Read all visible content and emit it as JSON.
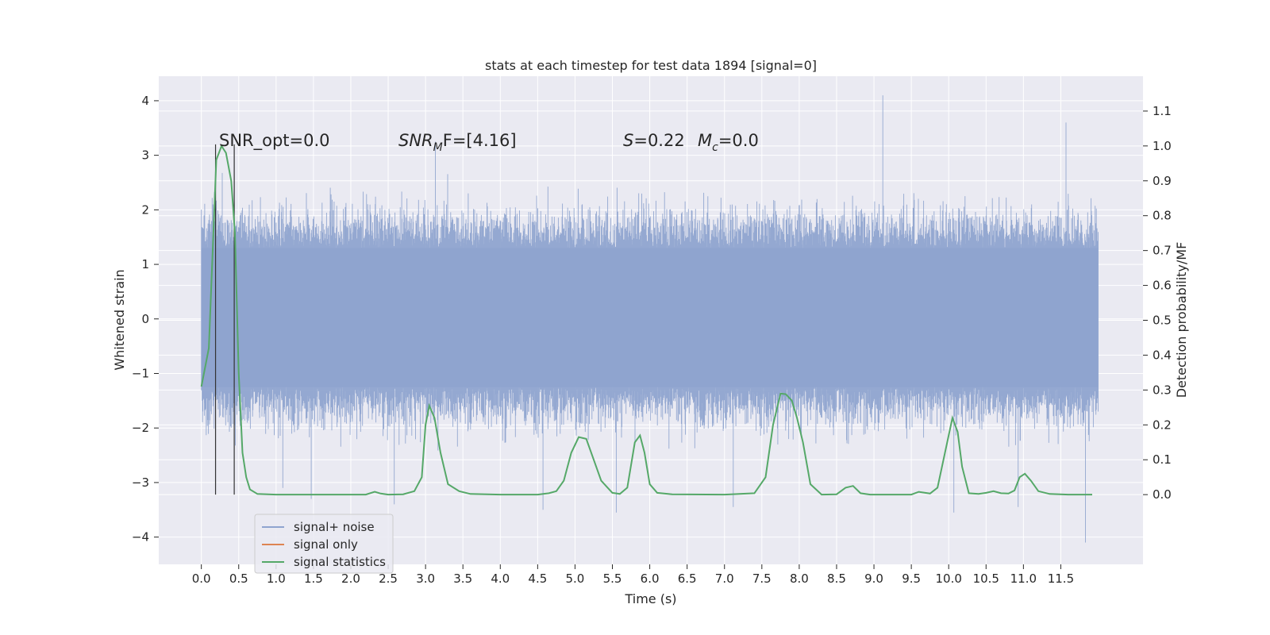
{
  "chart_data": {
    "type": "line",
    "title": "stats at each timestep for test data 1894 [signal=0]",
    "xlabel": "Time (s)",
    "ylabel_left": "Whitened strain",
    "ylabel_right": "Detection probability/MF",
    "xlim": [
      -0.57,
      12.6
    ],
    "ylim_left": [
      -4.5,
      4.45
    ],
    "ylim_right": [
      -0.2,
      1.2
    ],
    "x_ticks": [
      "0.0",
      "0.5",
      "1.0",
      "1.5",
      "2.0",
      "2.5",
      "3.0",
      "3.5",
      "4.0",
      "4.5",
      "5.0",
      "5.5",
      "6.0",
      "6.5",
      "7.0",
      "7.5",
      "8.0",
      "8.5",
      "9.0",
      "9.5",
      "10.0",
      "10.5",
      "11.0",
      "11.5"
    ],
    "y_left_ticks": [
      "4",
      "3",
      "2",
      "1",
      "0",
      "−1",
      "−2",
      "−3",
      "−4"
    ],
    "y_right_ticks": [
      "1.1",
      "1.0",
      "0.9",
      "0.8",
      "0.7",
      "0.6",
      "0.5",
      "0.4",
      "0.3",
      "0.2",
      "0.1",
      "0.0"
    ],
    "grid": true,
    "legend_position": "lower-left",
    "annotations": {
      "snr_opt": "SNR_opt=0.0",
      "snr_mf_prefix": "SNR",
      "snr_mf_sub": "M",
      "snr_mf_suffix": "F=[4.16]",
      "s_label": "S",
      "s_value": "=0.22",
      "mc_label": "M",
      "mc_sub": "c",
      "mc_value": "=0.0"
    },
    "vertical_markers_x": [
      0.19,
      0.44
    ],
    "series": [
      {
        "name": "signal+ noise",
        "color": "#8fa4cf",
        "kind": "noise",
        "x_range": [
          0.0,
          12.0
        ],
        "band": [
          -1.25,
          1.3
        ],
        "typical_extent": [
          -2.5,
          2.5
        ],
        "peaks": [
          {
            "x": 9.12,
            "y": 4.1
          },
          {
            "x": 11.57,
            "y": 3.6
          },
          {
            "x": 3.13,
            "y": 3.25
          },
          {
            "x": 0.19,
            "y": -3.05
          },
          {
            "x": 0.44,
            "y": 3.1
          },
          {
            "x": 11.83,
            "y": -4.1
          },
          {
            "x": 10.07,
            "y": -3.55
          },
          {
            "x": 4.57,
            "y": -3.5
          },
          {
            "x": 5.55,
            "y": -3.55
          },
          {
            "x": 7.12,
            "y": -3.45
          },
          {
            "x": 10.93,
            "y": -3.45
          },
          {
            "x": 2.58,
            "y": -3.4
          },
          {
            "x": 1.47,
            "y": -3.3
          },
          {
            "x": 1.09,
            "y": -3.1
          }
        ]
      },
      {
        "name": "signal only",
        "color": "#dd8452",
        "kind": "line",
        "x": [],
        "y": []
      },
      {
        "name": "signal statistics",
        "color": "#55a868",
        "kind": "line",
        "axis": "right",
        "x": [
          0.0,
          0.1,
          0.2,
          0.27,
          0.33,
          0.4,
          0.45,
          0.5,
          0.55,
          0.6,
          0.65,
          0.75,
          1.0,
          1.5,
          2.0,
          2.2,
          2.32,
          2.4,
          2.5,
          2.7,
          2.85,
          2.95,
          3.0,
          3.05,
          3.12,
          3.2,
          3.3,
          3.45,
          3.6,
          4.0,
          4.5,
          4.65,
          4.75,
          4.85,
          4.95,
          5.05,
          5.15,
          5.25,
          5.35,
          5.5,
          5.6,
          5.7,
          5.8,
          5.87,
          5.93,
          6.0,
          6.1,
          6.3,
          7.0,
          7.4,
          7.55,
          7.65,
          7.75,
          7.82,
          7.9,
          7.97,
          8.05,
          8.15,
          8.3,
          8.5,
          8.62,
          8.72,
          8.82,
          8.95,
          9.2,
          9.5,
          9.6,
          9.75,
          9.85,
          9.95,
          10.05,
          10.12,
          10.18,
          10.27,
          10.4,
          10.5,
          10.6,
          10.7,
          10.8,
          10.88,
          10.95,
          11.02,
          11.1,
          11.2,
          11.35,
          11.6,
          11.92
        ],
        "y": [
          0.31,
          0.42,
          0.96,
          1.0,
          0.98,
          0.9,
          0.75,
          0.35,
          0.12,
          0.05,
          0.015,
          0.002,
          0.0,
          0.0,
          0.0,
          0.0,
          0.008,
          0.003,
          0.0,
          0.001,
          0.01,
          0.05,
          0.2,
          0.255,
          0.22,
          0.12,
          0.03,
          0.01,
          0.002,
          0.0,
          0.0,
          0.004,
          0.01,
          0.04,
          0.12,
          0.165,
          0.16,
          0.1,
          0.04,
          0.005,
          0.002,
          0.02,
          0.15,
          0.17,
          0.12,
          0.03,
          0.005,
          0.001,
          0.0,
          0.004,
          0.05,
          0.2,
          0.29,
          0.288,
          0.27,
          0.22,
          0.15,
          0.03,
          0.0,
          0.001,
          0.02,
          0.025,
          0.004,
          0.0,
          0.0,
          0.0,
          0.008,
          0.003,
          0.02,
          0.12,
          0.22,
          0.18,
          0.08,
          0.004,
          0.002,
          0.005,
          0.01,
          0.004,
          0.003,
          0.012,
          0.05,
          0.06,
          0.04,
          0.01,
          0.002,
          0.0,
          0.0
        ]
      }
    ]
  }
}
